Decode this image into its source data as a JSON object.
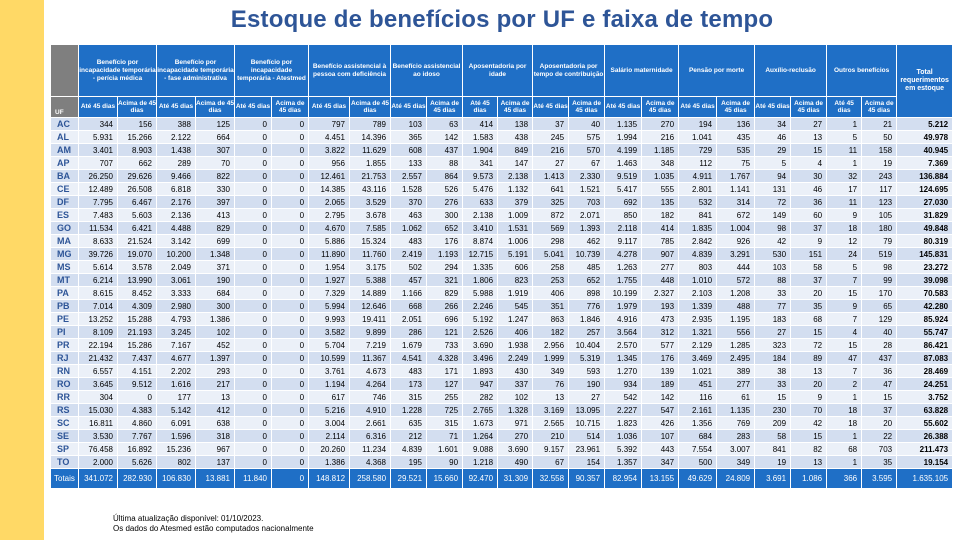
{
  "title": "Estoque de benefícios  por UF e faixa de tempo",
  "uf_header": "UF",
  "total_header": "Total requerimentos em estoque",
  "sub_headers": [
    "Até 45 dias",
    "Acima de 45 dias"
  ],
  "groups": [
    "Benefício por incapacidade temporária - perícia médica",
    "Benefício por incapacidade temporária - fase administrativa",
    "Benefício por incapacidade temporária  - Atestmed",
    "Benefício assistencial à pessoa com deficiência",
    "Benefício assistencial ao idoso",
    "Aposentadoria por idade",
    "Aposentadoria por tempo de contribuição",
    "Salário maternidade",
    "Pensão por morte",
    "Auxílio-reclusão",
    "Outros benefícios"
  ],
  "rows": [
    {
      "uf": "AC",
      "v": [
        "344",
        "156",
        "388",
        "125",
        "0",
        "0",
        "797",
        "789",
        "103",
        "63",
        "414",
        "138",
        "37",
        "40",
        "1.135",
        "270",
        "194",
        "136",
        "34",
        "27",
        "1",
        "21"
      ],
      "total": "5.212"
    },
    {
      "uf": "AL",
      "v": [
        "5.931",
        "15.266",
        "2.122",
        "664",
        "0",
        "0",
        "4.451",
        "14.396",
        "365",
        "142",
        "1.583",
        "438",
        "245",
        "575",
        "1.994",
        "216",
        "1.041",
        "435",
        "46",
        "13",
        "5",
        "50"
      ],
      "total": "49.978"
    },
    {
      "uf": "AM",
      "v": [
        "3.401",
        "8.903",
        "1.438",
        "307",
        "0",
        "0",
        "3.822",
        "11.629",
        "608",
        "437",
        "1.904",
        "849",
        "216",
        "570",
        "4.199",
        "1.185",
        "729",
        "535",
        "29",
        "15",
        "11",
        "158"
      ],
      "total": "40.945"
    },
    {
      "uf": "AP",
      "v": [
        "707",
        "662",
        "289",
        "70",
        "0",
        "0",
        "956",
        "1.855",
        "133",
        "88",
        "341",
        "147",
        "27",
        "67",
        "1.463",
        "348",
        "112",
        "75",
        "5",
        "4",
        "1",
        "19"
      ],
      "total": "7.369"
    },
    {
      "uf": "BA",
      "v": [
        "26.250",
        "29.626",
        "9.466",
        "822",
        "0",
        "0",
        "12.461",
        "21.753",
        "2.557",
        "864",
        "9.573",
        "2.138",
        "1.413",
        "2.330",
        "9.519",
        "1.035",
        "4.911",
        "1.767",
        "94",
        "30",
        "32",
        "243"
      ],
      "total": "136.884"
    },
    {
      "uf": "CE",
      "v": [
        "12.489",
        "26.508",
        "6.818",
        "330",
        "0",
        "0",
        "14.385",
        "43.116",
        "1.528",
        "526",
        "5.476",
        "1.132",
        "641",
        "1.521",
        "5.417",
        "555",
        "2.801",
        "1.141",
        "131",
        "46",
        "17",
        "117"
      ],
      "total": "124.695"
    },
    {
      "uf": "DF",
      "v": [
        "7.795",
        "6.467",
        "2.176",
        "397",
        "0",
        "0",
        "2.065",
        "3.529",
        "370",
        "276",
        "633",
        "379",
        "325",
        "703",
        "692",
        "135",
        "532",
        "314",
        "72",
        "36",
        "11",
        "123"
      ],
      "total": "27.030"
    },
    {
      "uf": "ES",
      "v": [
        "7.483",
        "5.603",
        "2.136",
        "413",
        "0",
        "0",
        "2.795",
        "3.678",
        "463",
        "300",
        "2.138",
        "1.009",
        "872",
        "2.071",
        "850",
        "182",
        "841",
        "672",
        "149",
        "60",
        "9",
        "105"
      ],
      "total": "31.829"
    },
    {
      "uf": "GO",
      "v": [
        "11.534",
        "6.421",
        "4.488",
        "829",
        "0",
        "0",
        "4.670",
        "7.585",
        "1.062",
        "652",
        "3.410",
        "1.531",
        "569",
        "1.393",
        "2.118",
        "414",
        "1.835",
        "1.004",
        "98",
        "37",
        "18",
        "180"
      ],
      "total": "49.848"
    },
    {
      "uf": "MA",
      "v": [
        "8.633",
        "21.524",
        "3.142",
        "699",
        "0",
        "0",
        "5.886",
        "15.324",
        "483",
        "176",
        "8.874",
        "1.006",
        "298",
        "462",
        "9.117",
        "785",
        "2.842",
        "926",
        "42",
        "9",
        "12",
        "79"
      ],
      "total": "80.319"
    },
    {
      "uf": "MG",
      "v": [
        "39.726",
        "19.070",
        "10.200",
        "1.348",
        "0",
        "0",
        "11.890",
        "11.760",
        "2.419",
        "1.193",
        "12.715",
        "5.191",
        "5.041",
        "10.739",
        "4.278",
        "907",
        "4.839",
        "3.291",
        "530",
        "151",
        "24",
        "519"
      ],
      "total": "145.831"
    },
    {
      "uf": "MS",
      "v": [
        "5.614",
        "3.578",
        "2.049",
        "371",
        "0",
        "0",
        "1.954",
        "3.175",
        "502",
        "294",
        "1.335",
        "606",
        "258",
        "485",
        "1.263",
        "277",
        "803",
        "444",
        "103",
        "58",
        "5",
        "98"
      ],
      "total": "23.272"
    },
    {
      "uf": "MT",
      "v": [
        "6.214",
        "13.990",
        "3.061",
        "190",
        "0",
        "0",
        "1.927",
        "5.388",
        "457",
        "321",
        "1.806",
        "823",
        "253",
        "652",
        "1.755",
        "448",
        "1.010",
        "572",
        "88",
        "37",
        "7",
        "99"
      ],
      "total": "39.098"
    },
    {
      "uf": "PA",
      "v": [
        "8.615",
        "8.452",
        "3.333",
        "684",
        "0",
        "0",
        "7.329",
        "14.889",
        "1.166",
        "829",
        "5.988",
        "1.919",
        "406",
        "898",
        "10.199",
        "2.327",
        "2.103",
        "1.208",
        "33",
        "20",
        "15",
        "170"
      ],
      "total": "70.583"
    },
    {
      "uf": "PB",
      "v": [
        "7.014",
        "4.309",
        "2.980",
        "300",
        "0",
        "0",
        "5.994",
        "12.646",
        "668",
        "266",
        "2.246",
        "545",
        "351",
        "776",
        "1.979",
        "193",
        "1.339",
        "488",
        "77",
        "35",
        "9",
        "65"
      ],
      "total": "42.280"
    },
    {
      "uf": "PE",
      "v": [
        "13.252",
        "15.288",
        "4.793",
        "1.386",
        "0",
        "0",
        "9.993",
        "19.411",
        "2.051",
        "696",
        "5.192",
        "1.247",
        "863",
        "1.846",
        "4.916",
        "473",
        "2.935",
        "1.195",
        "183",
        "68",
        "7",
        "129"
      ],
      "total": "85.924"
    },
    {
      "uf": "PI",
      "v": [
        "8.109",
        "21.193",
        "3.245",
        "102",
        "0",
        "0",
        "3.582",
        "9.899",
        "286",
        "121",
        "2.526",
        "406",
        "182",
        "257",
        "3.564",
        "312",
        "1.321",
        "556",
        "27",
        "15",
        "4",
        "40"
      ],
      "total": "55.747"
    },
    {
      "uf": "PR",
      "v": [
        "22.194",
        "15.286",
        "7.167",
        "452",
        "0",
        "0",
        "5.704",
        "7.219",
        "1.679",
        "733",
        "3.690",
        "1.938",
        "2.956",
        "10.404",
        "2.570",
        "577",
        "2.129",
        "1.285",
        "323",
        "72",
        "15",
        "28"
      ],
      "total": "86.421"
    },
    {
      "uf": "RJ",
      "v": [
        "21.432",
        "7.437",
        "4.677",
        "1.397",
        "0",
        "0",
        "10.599",
        "11.367",
        "4.541",
        "4.328",
        "3.496",
        "2.249",
        "1.999",
        "5.319",
        "1.345",
        "176",
        "3.469",
        "2.495",
        "184",
        "89",
        "47",
        "437"
      ],
      "total": "87.083"
    },
    {
      "uf": "RN",
      "v": [
        "6.557",
        "4.151",
        "2.202",
        "293",
        "0",
        "0",
        "3.761",
        "4.673",
        "483",
        "171",
        "1.893",
        "430",
        "349",
        "593",
        "1.270",
        "139",
        "1.021",
        "389",
        "38",
        "13",
        "7",
        "36"
      ],
      "total": "28.469"
    },
    {
      "uf": "RO",
      "v": [
        "3.645",
        "9.512",
        "1.616",
        "217",
        "0",
        "0",
        "1.194",
        "4.264",
        "173",
        "127",
        "947",
        "337",
        "76",
        "190",
        "934",
        "189",
        "451",
        "277",
        "33",
        "20",
        "2",
        "47"
      ],
      "total": "24.251"
    },
    {
      "uf": "RR",
      "v": [
        "304",
        "0",
        "177",
        "13",
        "0",
        "0",
        "617",
        "746",
        "315",
        "255",
        "282",
        "102",
        "13",
        "27",
        "542",
        "142",
        "116",
        "61",
        "15",
        "9",
        "1",
        "15"
      ],
      "total": "3.752"
    },
    {
      "uf": "RS",
      "v": [
        "15.030",
        "4.383",
        "5.142",
        "412",
        "0",
        "0",
        "5.216",
        "4.910",
        "1.228",
        "725",
        "2.765",
        "1.328",
        "3.169",
        "13.095",
        "2.227",
        "547",
        "2.161",
        "1.135",
        "230",
        "70",
        "18",
        "37"
      ],
      "total": "63.828"
    },
    {
      "uf": "SC",
      "v": [
        "16.811",
        "4.860",
        "6.091",
        "638",
        "0",
        "0",
        "3.004",
        "2.661",
        "635",
        "315",
        "1.673",
        "971",
        "2.565",
        "10.715",
        "1.823",
        "426",
        "1.356",
        "769",
        "209",
        "42",
        "18",
        "20"
      ],
      "total": "55.602"
    },
    {
      "uf": "SE",
      "v": [
        "3.530",
        "7.767",
        "1.596",
        "318",
        "0",
        "0",
        "2.114",
        "6.316",
        "212",
        "71",
        "1.264",
        "270",
        "210",
        "514",
        "1.036",
        "107",
        "684",
        "283",
        "58",
        "15",
        "1",
        "22"
      ],
      "total": "26.388"
    },
    {
      "uf": "SP",
      "v": [
        "76.458",
        "16.892",
        "15.236",
        "967",
        "0",
        "0",
        "20.260",
        "11.234",
        "4.839",
        "1.601",
        "9.088",
        "3.690",
        "9.157",
        "23.961",
        "5.392",
        "443",
        "7.554",
        "3.007",
        "841",
        "82",
        "68",
        "703"
      ],
      "total": "211.473"
    },
    {
      "uf": "TO",
      "v": [
        "2.000",
        "5.626",
        "802",
        "137",
        "0",
        "0",
        "1.386",
        "4.368",
        "195",
        "90",
        "1.218",
        "490",
        "67",
        "154",
        "1.357",
        "347",
        "500",
        "349",
        "19",
        "13",
        "1",
        "35"
      ],
      "total": "19.154"
    }
  ],
  "totals": {
    "label": "Totais",
    "v": [
      "341.072",
      "282.930",
      "106.830",
      "13.881",
      "11.840",
      "0",
      "148.812",
      "258.580",
      "29.521",
      "15.660",
      "92.470",
      "31.309",
      "32.558",
      "90.357",
      "82.954",
      "13.155",
      "49.629",
      "24.809",
      "3.691",
      "1.086",
      "366",
      "3.595"
    ],
    "total": "1.635.105"
  },
  "footnote": {
    "line1": "Última atualização disponível:  01/10/2023.",
    "line2": "Os dados do Atesmed estão computados nacionalmente"
  }
}
